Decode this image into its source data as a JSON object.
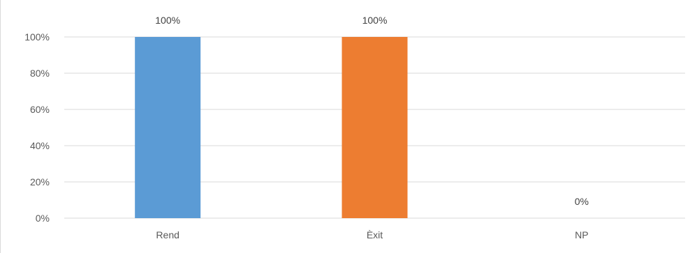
{
  "chart_data": {
    "type": "bar",
    "categories": [
      "Rend",
      "Èxit",
      "NP"
    ],
    "values": [
      100,
      100,
      0
    ],
    "data_labels": [
      "100%",
      "100%",
      "0%"
    ],
    "colors": [
      "#5b9bd5",
      "#ed7d31",
      "#a5a5a5"
    ],
    "title": "",
    "xlabel": "",
    "ylabel": "",
    "ylim": [
      0,
      100
    ],
    "yticks": [
      0,
      20,
      40,
      60,
      80,
      100
    ],
    "ytick_labels": [
      "0%",
      "20%",
      "40%",
      "60%",
      "80%",
      "100%"
    ],
    "grid": true,
    "legend": "none",
    "gridline_color": "#d9d9d9"
  }
}
